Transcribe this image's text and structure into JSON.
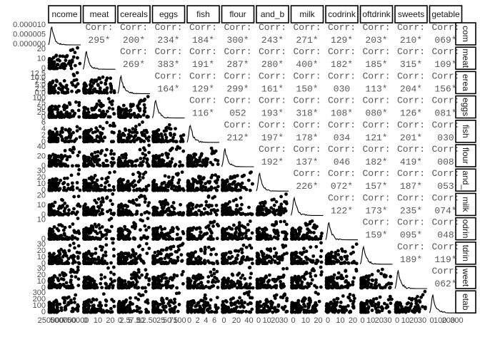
{
  "chart_data": {
    "type": "scatter",
    "subtype": "pairs-matrix",
    "variables": [
      "income",
      "meat",
      "cereals",
      "eggs",
      "fish",
      "flour",
      "bread_and_b",
      "milk",
      "cocodrink",
      "softdrink",
      "sweets",
      "vegetable"
    ],
    "strip_labels_top": [
      "ncome",
      "meat",
      "cereals",
      "eggs",
      "fish",
      "flour",
      "and_b",
      "milk",
      "codrink",
      "oftdrink",
      "sweets",
      "getable"
    ],
    "strip_labels_right": [
      "com",
      "meat",
      "erea",
      "eggs",
      "fish",
      "flour",
      "and_",
      "milk",
      "odrin",
      "tdrin",
      "weet",
      "etab"
    ],
    "correlation_label": "Corr:",
    "correlations": [
      [
        null,
        "295*",
        "200*",
        "234*",
        "184*",
        "300*",
        "243*",
        "271*",
        "129*",
        "203*",
        "210*",
        "069*"
      ],
      [
        null,
        null,
        "269*",
        "383*",
        "191*",
        "287*",
        "280*",
        "400*",
        "182*",
        "185*",
        "315*",
        "109*"
      ],
      [
        null,
        null,
        null,
        "164*",
        "129*",
        "299*",
        "161*",
        "150*",
        "030",
        "113*",
        "204*",
        "156*"
      ],
      [
        null,
        null,
        null,
        null,
        "116*",
        "052",
        "193*",
        "318*",
        "108*",
        "080*",
        "126*",
        "081*"
      ],
      [
        null,
        null,
        null,
        null,
        null,
        "212*",
        "197*",
        "178*",
        "034",
        "121*",
        "201*",
        "030"
      ],
      [
        null,
        null,
        null,
        null,
        null,
        null,
        "192*",
        "137*",
        "046",
        "182*",
        "419*",
        "008"
      ],
      [
        null,
        null,
        null,
        null,
        null,
        null,
        null,
        "226*",
        "072*",
        "157*",
        "187*",
        "053"
      ],
      [
        null,
        null,
        null,
        null,
        null,
        null,
        null,
        null,
        "122*",
        "173*",
        "235*",
        "074*"
      ],
      [
        null,
        null,
        null,
        null,
        null,
        null,
        null,
        null,
        null,
        "159*",
        "095*",
        "048"
      ],
      [
        null,
        null,
        null,
        null,
        null,
        null,
        null,
        null,
        null,
        null,
        "189*",
        "119*"
      ],
      [
        null,
        null,
        null,
        null,
        null,
        null,
        null,
        null,
        null,
        null,
        null,
        "062*"
      ],
      [
        null,
        null,
        null,
        null,
        null,
        null,
        null,
        null,
        null,
        null,
        null,
        null
      ]
    ],
    "y_axis_ticks": [
      [
        "0.000010",
        "0.000005",
        "0.000000"
      ],
      [
        "20",
        "10",
        "0"
      ],
      [
        "12.5",
        "10.0",
        "7.5",
        "5.0",
        "2.5",
        "0.0"
      ],
      [
        "100",
        "75",
        "50",
        "25",
        "0"
      ],
      [
        "6",
        "4",
        "2",
        "0"
      ],
      [
        "40",
        "20",
        "0"
      ],
      [
        "30",
        "20",
        "10",
        "0"
      ],
      [
        "20",
        "10",
        "0"
      ],
      [
        "10",
        "0"
      ],
      [
        "30",
        "20",
        "10",
        "0"
      ],
      [
        "30",
        "20",
        "10",
        "0"
      ],
      [
        "300",
        "200",
        "100",
        "0"
      ]
    ],
    "x_axis_ticks": [
      [
        "250000",
        "500000",
        "750000"
      ],
      [
        "0",
        "10",
        "20"
      ],
      [
        "0",
        "2.5",
        "5",
        "7.5",
        "10",
        "12.5"
      ],
      [
        "0",
        "25",
        "50",
        "75",
        "100"
      ],
      [
        "0",
        "2",
        "4",
        "6"
      ],
      [
        "0",
        "20",
        "40"
      ],
      [
        "0",
        "10",
        "20",
        "30"
      ],
      [
        "0",
        "10",
        "20"
      ],
      [
        "0",
        "10",
        "20"
      ],
      [
        "0",
        "10",
        "20",
        "30"
      ],
      [
        "0",
        "10",
        "20",
        "30"
      ],
      [
        "0",
        "100",
        "200",
        "300"
      ]
    ],
    "grid": false,
    "diagonal": "density",
    "lower": "points",
    "upper": "correlation"
  }
}
